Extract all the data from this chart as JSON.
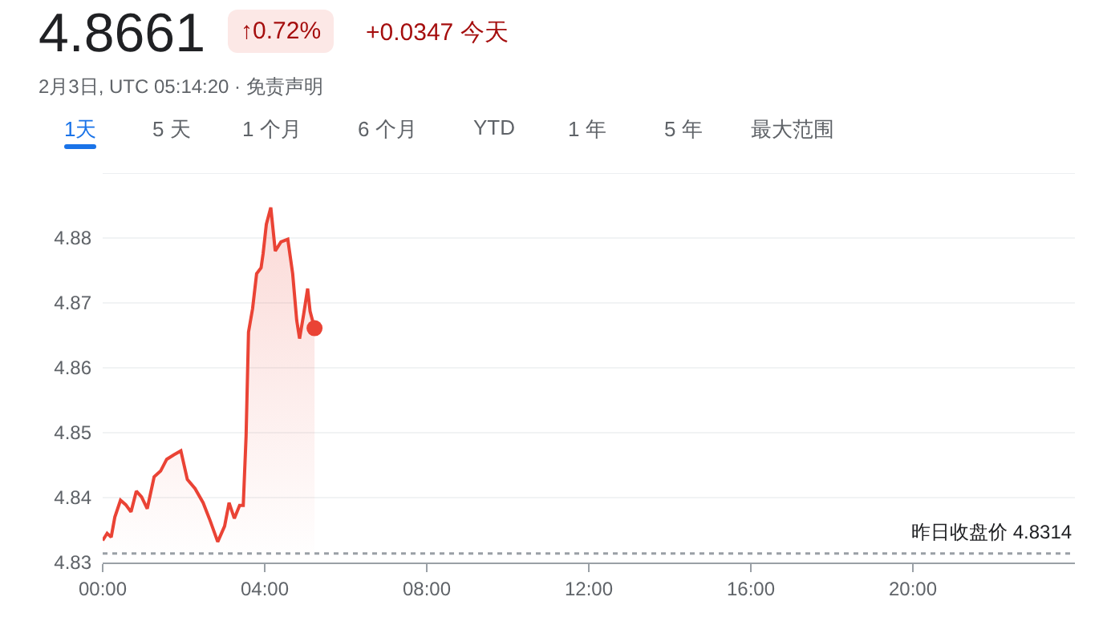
{
  "chart_data": {
    "type": "area",
    "title": "4.8661",
    "subtitle": "2月3日, UTC 05:14:20 · 免责声明",
    "annotations": [
      "↑0.72%",
      "+0.0347 今天",
      "1天",
      "5 天",
      "1 个月",
      "6 个月",
      "YTD",
      "1 年",
      "5 年",
      "最大范围"
    ],
    "series": [
      {
        "color": "#ea4335",
        "x": [
          0,
          0.11,
          0.21,
          0.3,
          0.44,
          0.57,
          0.7,
          0.83,
          0.96,
          1.1,
          1.27,
          1.43,
          1.58,
          1.76,
          1.93,
          2.09,
          2.28,
          2.48,
          2.65,
          2.84,
          3.01,
          3.12,
          3.25,
          3.38,
          3.47,
          3.54,
          3.6,
          3.7,
          3.8,
          3.91,
          3.96,
          4.04,
          4.15,
          4.26,
          4.4,
          4.57,
          4.69,
          4.79,
          4.86,
          4.96,
          5.06,
          5.12,
          5.23
        ],
        "values": [
          4.8334,
          4.8345,
          4.8339,
          4.837,
          4.8396,
          4.8389,
          4.8378,
          4.841,
          4.8401,
          4.8383,
          4.8432,
          4.8441,
          4.8459,
          4.8466,
          4.8472,
          4.8428,
          4.8414,
          4.8392,
          4.8365,
          4.8332,
          4.8356,
          4.8392,
          4.8368,
          4.8388,
          4.8388,
          4.8495,
          4.8655,
          4.8691,
          4.8745,
          4.8754,
          4.8776,
          4.8821,
          4.8847,
          4.878,
          4.8794,
          4.8798,
          4.8745,
          4.8673,
          4.8645,
          4.8682,
          4.8722,
          4.8687,
          4.8661
        ]
      },
      {
        "type": "scatter",
        "color": "#ea4335",
        "x": [
          5.23
        ],
        "values": [
          4.8661
        ]
      }
    ],
    "xlim": [
      0,
      24
    ],
    "xticks": [
      {
        "value": 0,
        "label": "00:00"
      },
      {
        "value": 4,
        "label": "04:00"
      },
      {
        "value": 8,
        "label": "08:00"
      },
      {
        "value": 12,
        "label": "12:00"
      },
      {
        "value": 16,
        "label": "16:00"
      },
      {
        "value": 20,
        "label": "20:00"
      }
    ],
    "ylim": [
      4.83,
      4.89
    ],
    "yticks": [
      4.83,
      4.84,
      4.85,
      4.86,
      4.87,
      4.88
    ],
    "ref_lines": [
      {
        "axis": "y",
        "value": 4.8314,
        "label": "昨日收盘价 4.8314",
        "color": "#9aa0a6",
        "line_style": "dotted"
      }
    ],
    "grid": "y"
  }
}
